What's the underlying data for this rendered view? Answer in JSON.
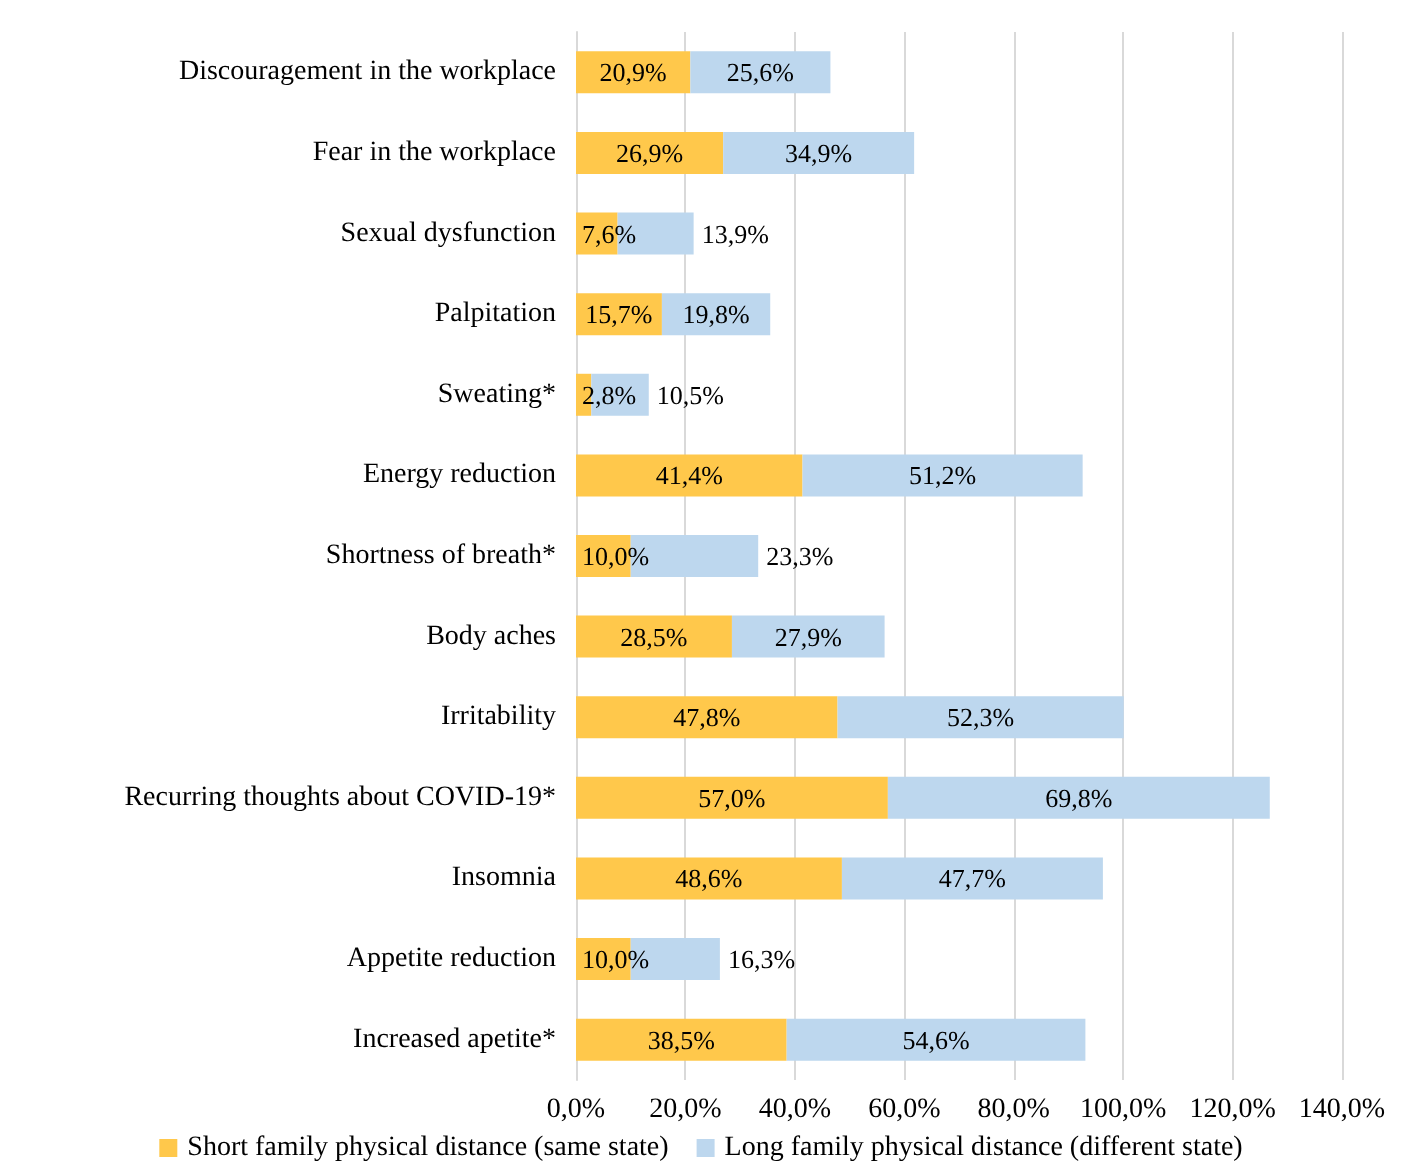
{
  "chart_data": {
    "type": "bar",
    "orientation": "horizontal",
    "stacked": true,
    "categories": [
      "Discouragement in the workplace",
      "Fear in the workplace",
      "Sexual dysfunction",
      "Palpitation",
      "Sweating*",
      "Energy reduction",
      "Shortness of breath*",
      "Body aches",
      "Irritability",
      "Recurring thoughts about COVID-19*",
      "Insomnia",
      "Appetite reduction",
      "Increased apetite*"
    ],
    "series": [
      {
        "name": "Short family physical distance (same state)",
        "color": "#ffc84b",
        "values": [
          20.9,
          26.9,
          7.6,
          15.7,
          2.8,
          41.4,
          10.0,
          28.5,
          47.8,
          57.0,
          48.6,
          10.0,
          38.5
        ],
        "value_labels": [
          "20,9%",
          "26,9%",
          "7,6%",
          "15,7%",
          "2,8%",
          "41,4%",
          "10,0%",
          "28,5%",
          "47,8%",
          "57,0%",
          "48,6%",
          "10,0%",
          "38,5%"
        ]
      },
      {
        "name": "Long family physical distance (different state)",
        "color": "#bdd7ee",
        "values": [
          25.6,
          34.9,
          13.9,
          19.8,
          10.5,
          51.2,
          23.3,
          27.9,
          52.3,
          69.8,
          47.7,
          16.3,
          54.6
        ],
        "value_labels": [
          "25,6%",
          "34,9%",
          "13,9%",
          "19,8%",
          "10,5%",
          "51,2%",
          "23,3%",
          "27,9%",
          "52,3%",
          "69,8%",
          "47,7%",
          "16,3%",
          "54,6%"
        ]
      }
    ],
    "xlim": [
      0,
      140
    ],
    "xticks": [
      {
        "value": 0,
        "label": "0,0%"
      },
      {
        "value": 20,
        "label": "20,0%"
      },
      {
        "value": 40,
        "label": "40,0%"
      },
      {
        "value": 60,
        "label": "60,0%"
      },
      {
        "value": 80,
        "label": "80,0%"
      },
      {
        "value": 100,
        "label": "100,0%"
      },
      {
        "value": 120,
        "label": "120,0%"
      },
      {
        "value": 140,
        "label": "140,0%"
      }
    ],
    "grid": "x",
    "legend": "bottom"
  }
}
